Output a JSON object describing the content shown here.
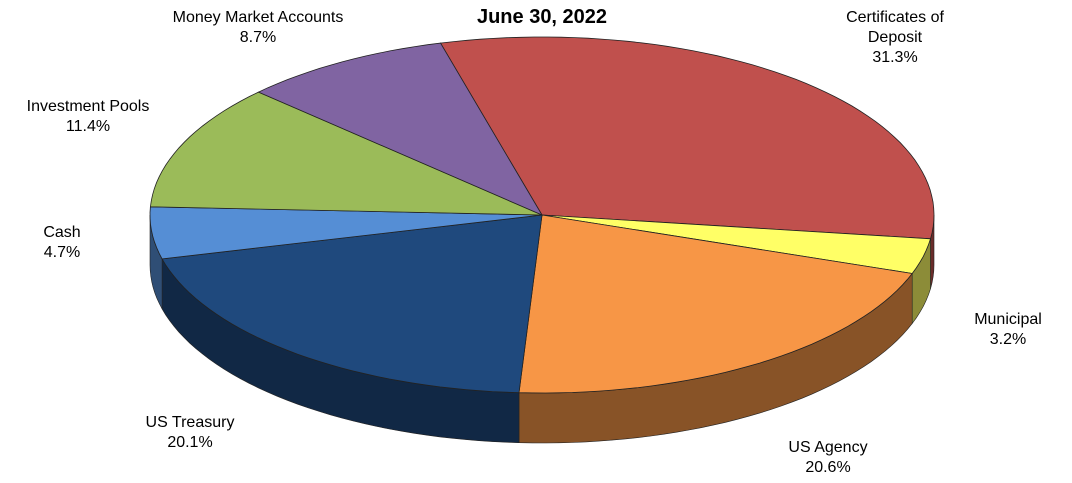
{
  "chart_data": {
    "type": "pie",
    "title": "June 30, 2022",
    "categories": [
      "Certificates of Deposit",
      "Municipal",
      "US Agency",
      "US Treasury",
      "Cash",
      "Investment Pools",
      "Money Market Accounts"
    ],
    "values": [
      31.3,
      3.2,
      20.6,
      20.1,
      4.7,
      11.4,
      8.7
    ],
    "value_labels": [
      "31.3%",
      "3.2%",
      "20.6%",
      "20.1%",
      "4.7%",
      "11.4%",
      "8.7%"
    ],
    "colors": [
      "#c0504d",
      "#ffff66",
      "#f79646",
      "#1f497d",
      "#558ed5",
      "#9bbb59",
      "#8064a2"
    ]
  }
}
